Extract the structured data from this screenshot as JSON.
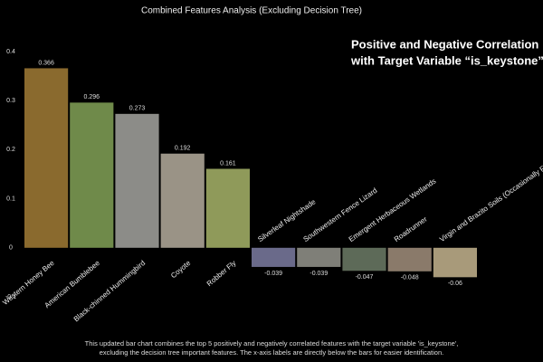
{
  "chart_data": {
    "type": "bar",
    "title": "Combined Features Analysis (Excluding Decision Tree)",
    "annotation": [
      "Positive and Negative Correlation",
      "with Target Variable “is_keystone”"
    ],
    "caption": [
      "This updated bar chart combines the top 5 positively and negatively correlated features with the target variable 'is_keystone',",
      "excluding the decision tree important features. The x-axis labels are directly below the bars for easier identification."
    ],
    "categories": [
      "Western Honey Bee",
      "American Bumblebee",
      "Black-chinned Hummingbird",
      "Coyote",
      "Robber Fly",
      "Silverleaf Nightshade",
      "Southwestern Fence Lizard",
      "Emergent Herbaceous Wetlands",
      "Roadrunner",
      "Virgin and Brazito Soils (Occasionally Flooded)"
    ],
    "values": [
      0.366,
      0.296,
      0.273,
      0.192,
      0.161,
      -0.039,
      -0.039,
      -0.047,
      -0.048,
      -0.06
    ],
    "colors": [
      "#8a6a2e",
      "#6f8a4a",
      "#8c8c88",
      "#9a9386",
      "#8f9a5a",
      "#6a6a8a",
      "#7f7f78",
      "#5d6a58",
      "#8a7a6a",
      "#a89a7a"
    ],
    "ylim": [
      -0.1,
      0.4
    ],
    "yticks": [
      -0.1,
      0,
      0.1,
      0.2,
      0.3,
      0.4
    ]
  }
}
